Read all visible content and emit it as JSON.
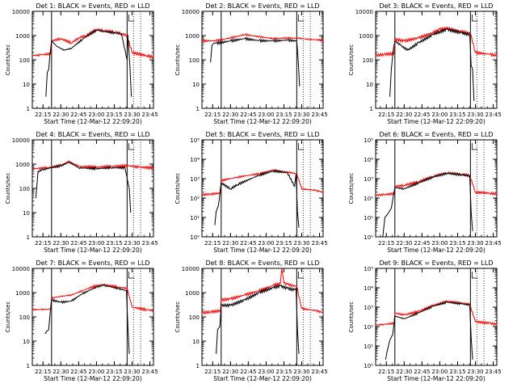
{
  "colors": {
    "events": "#000000",
    "lld": "#ff0000",
    "frame": "#000000"
  },
  "chart_data": [
    {
      "type": "line",
      "title": "Det 1: BLACK = Events, RED = LLD",
      "xlabel": "Start Time (12-Mar-12 22:09:20)",
      "ylabel": "Counts/sec",
      "xlim": [
        22.1,
        23.8
      ],
      "ylim": [
        1,
        10000
      ],
      "x_ticks": [
        "22:15",
        "22:30",
        "22:45",
        "23:00",
        "23:15",
        "23:30",
        "23:45"
      ],
      "y_ticks": [
        "1",
        "10",
        "100",
        "1000",
        "10000"
      ],
      "series": [
        {
          "name": "LLD",
          "color": "#ff0000",
          "x": [
            22.1,
            22.22,
            22.36,
            22.37,
            22.5,
            22.65,
            22.75,
            22.85,
            23.0,
            23.1,
            23.25,
            23.35,
            23.43,
            23.5,
            23.7,
            23.8
          ],
          "y": [
            150,
            160,
            180,
            600,
            750,
            500,
            800,
            1000,
            1800,
            1600,
            1400,
            1200,
            1000,
            200,
            150,
            130
          ]
        },
        {
          "name": "Events",
          "color": "#000000",
          "x": [
            22.29,
            22.31,
            22.33,
            22.35,
            22.37,
            22.45,
            22.55,
            22.65,
            22.8,
            23.0,
            23.1,
            23.25,
            23.35,
            23.43,
            23.44,
            23.47,
            23.49
          ],
          "y": [
            3,
            30,
            40,
            200,
            600,
            350,
            250,
            300,
            700,
            1700,
            1500,
            1300,
            1200,
            100,
            1100,
            50,
            3
          ]
        }
      ]
    },
    {
      "type": "line",
      "title": "Det 2: BLACK = Events, RED = LLD",
      "xlabel": "Start Time (12-Mar-12 22:09:20)",
      "ylabel": "Counts/sec",
      "xlim": [
        22.1,
        23.8
      ],
      "ylim": [
        1,
        10000
      ],
      "x_ticks": [
        "22:15",
        "22:30",
        "22:45",
        "23:00",
        "23:15",
        "23:30",
        "23:45"
      ],
      "y_ticks": [
        "1",
        "10",
        "100",
        "1000",
        "10000"
      ],
      "series": [
        {
          "name": "LLD",
          "color": "#ff0000",
          "x": [
            22.1,
            22.3,
            22.5,
            22.7,
            22.9,
            23.1,
            23.3,
            23.45,
            23.6,
            23.8
          ],
          "y": [
            600,
            620,
            800,
            1100,
            900,
            750,
            800,
            780,
            700,
            650
          ]
        },
        {
          "name": "Events",
          "color": "#000000",
          "x": [
            22.22,
            22.24,
            22.27,
            22.3,
            22.5,
            22.7,
            22.9,
            23.1,
            23.3,
            23.43,
            23.45,
            23.47
          ],
          "y": [
            80,
            400,
            500,
            480,
            600,
            750,
            620,
            600,
            650,
            600,
            100,
            8
          ]
        }
      ]
    },
    {
      "type": "line",
      "title": "Det 3: BLACK = Events, RED = LLD",
      "xlabel": "Start Time (12-Mar-12 22:09:20)",
      "ylabel": "Counts/sec",
      "xlim": [
        22.1,
        23.8
      ],
      "ylim": [
        1,
        10000
      ],
      "x_ticks": [
        "22:15",
        "22:30",
        "22:45",
        "23:00",
        "23:15",
        "23:30",
        "23:45"
      ],
      "y_ticks": [
        "1",
        "10",
        "100",
        "1000",
        "10000"
      ],
      "series": [
        {
          "name": "LLD",
          "color": "#ff0000",
          "x": [
            22.1,
            22.22,
            22.36,
            22.37,
            22.5,
            22.7,
            22.9,
            23.0,
            23.1,
            23.3,
            23.43,
            23.5,
            23.7,
            23.8
          ],
          "y": [
            150,
            170,
            180,
            700,
            600,
            800,
            1300,
            1800,
            2000,
            1500,
            1200,
            200,
            170,
            150
          ]
        },
        {
          "name": "Events",
          "color": "#000000",
          "x": [
            22.3,
            22.32,
            22.35,
            22.37,
            22.45,
            22.55,
            22.7,
            22.9,
            23.1,
            23.3,
            23.42,
            23.44,
            23.46,
            23.48
          ],
          "y": [
            3,
            40,
            300,
            600,
            400,
            250,
            500,
            1100,
            1800,
            1300,
            1100,
            60,
            40,
            2
          ]
        }
      ]
    },
    {
      "type": "line",
      "title": "Det 4: BLACK = Events, RED = LLD",
      "xlabel": "Start Time (12-Mar-12 22:09:20)",
      "ylabel": "Counts/sec",
      "xlim": [
        22.1,
        23.8
      ],
      "ylim": [
        1,
        10000
      ],
      "x_ticks": [
        "22:15",
        "22:30",
        "22:45",
        "23:00",
        "23:15",
        "23:30",
        "23:45"
      ],
      "y_ticks": [
        "1",
        "10",
        "100",
        "1000",
        "10000"
      ],
      "series": [
        {
          "name": "LLD",
          "color": "#ff0000",
          "x": [
            22.1,
            22.3,
            22.5,
            22.62,
            22.75,
            23.0,
            23.2,
            23.45,
            23.6,
            23.8
          ],
          "y": [
            650,
            700,
            900,
            1300,
            800,
            750,
            800,
            850,
            750,
            700
          ]
        },
        {
          "name": "Events",
          "color": "#000000",
          "x": [
            22.15,
            22.18,
            22.25,
            22.5,
            22.62,
            22.75,
            23.0,
            23.2,
            23.4,
            23.46,
            23.48
          ],
          "y": [
            40,
            500,
            600,
            850,
            1200,
            700,
            650,
            700,
            700,
            100,
            10
          ]
        }
      ]
    },
    {
      "type": "line",
      "title": "Det 5: BLACK = Events, RED = LLD",
      "xlabel": "Start Time (12-Mar-12 22:09:20)",
      "ylabel": "Counts/sec",
      "xlim": [
        22.1,
        23.8
      ],
      "ylim": [
        1,
        100000
      ],
      "x_ticks": [
        "22:15",
        "22:30",
        "22:45",
        "23:00",
        "23:15",
        "23:30",
        "23:45"
      ],
      "y_ticks": [
        "10⁰",
        "10¹",
        "10²",
        "10³",
        "10⁴",
        "10⁵"
      ],
      "series": [
        {
          "name": "LLD",
          "color": "#ff0000",
          "x": [
            22.1,
            22.22,
            22.36,
            22.37,
            22.6,
            22.9,
            23.1,
            23.3,
            23.43,
            23.5,
            23.7,
            23.8
          ],
          "y": [
            150,
            160,
            180,
            800,
            1200,
            1800,
            2800,
            2200,
            1800,
            300,
            250,
            200
          ]
        },
        {
          "name": "Events",
          "color": "#000000",
          "x": [
            22.28,
            22.3,
            22.33,
            22.37,
            22.5,
            22.6,
            22.9,
            23.1,
            23.3,
            23.4,
            23.42,
            23.44,
            23.46
          ],
          "y": [
            4,
            20,
            40,
            600,
            300,
            500,
            1500,
            2500,
            2000,
            400,
            1800,
            20,
            3
          ]
        }
      ]
    },
    {
      "type": "line",
      "title": "Det 6: BLACK = Events, RED = LLD",
      "xlabel": "Start Time (12-Mar-12 22:09:20)",
      "ylabel": "Counts/sec",
      "xlim": [
        22.1,
        23.8
      ],
      "ylim": [
        1,
        100000
      ],
      "x_ticks": [
        "22:15",
        "22:30",
        "22:45",
        "23:00",
        "23:15",
        "23:30",
        "23:45"
      ],
      "y_ticks": [
        "10⁰",
        "10¹",
        "10²",
        "10³",
        "10⁴",
        "10⁵"
      ],
      "series": [
        {
          "name": "LLD",
          "color": "#ff0000",
          "x": [
            22.1,
            22.22,
            22.36,
            22.37,
            22.5,
            22.7,
            22.9,
            23.1,
            23.3,
            23.42,
            23.5,
            23.7,
            23.8
          ],
          "y": [
            140,
            150,
            170,
            400,
            450,
            700,
            1300,
            2000,
            1700,
            1500,
            200,
            180,
            160
          ]
        },
        {
          "name": "Events",
          "color": "#000000",
          "x": [
            22.2,
            22.23,
            22.27,
            22.32,
            22.37,
            22.5,
            22.7,
            22.9,
            23.1,
            23.3,
            23.42,
            23.44,
            23.46
          ],
          "y": [
            1,
            10,
            15,
            30,
            350,
            300,
            600,
            1200,
            1900,
            1600,
            1400,
            20,
            2
          ]
        }
      ]
    },
    {
      "type": "line",
      "title": "Det 7: BLACK = Events, RED = LLD",
      "xlabel": "Start Time (12-Mar-12 22:09:20)",
      "ylabel": "Counts/sec",
      "xlim": [
        22.1,
        23.8
      ],
      "ylim": [
        1,
        10000
      ],
      "x_ticks": [
        "22:15",
        "22:30",
        "22:45",
        "23:00",
        "23:15",
        "23:30",
        "23:45"
      ],
      "y_ticks": [
        "1",
        "10",
        "100",
        "1000",
        "10000"
      ],
      "series": [
        {
          "name": "LLD",
          "color": "#ff0000",
          "x": [
            22.1,
            22.22,
            22.36,
            22.37,
            22.5,
            22.65,
            22.8,
            23.0,
            23.1,
            23.3,
            23.43,
            23.5,
            23.7,
            23.8
          ],
          "y": [
            200,
            200,
            210,
            600,
            700,
            800,
            1200,
            2000,
            2200,
            1700,
            1500,
            250,
            200,
            180
          ]
        },
        {
          "name": "Events",
          "color": "#000000",
          "x": [
            22.28,
            22.3,
            22.33,
            22.35,
            22.37,
            22.5,
            22.65,
            22.8,
            23.0,
            23.1,
            23.3,
            23.42,
            23.44,
            23.46
          ],
          "y": [
            20,
            25,
            30,
            150,
            500,
            400,
            450,
            900,
            1700,
            2000,
            1500,
            1200,
            50,
            3
          ]
        }
      ]
    },
    {
      "type": "line",
      "title": "Det 8: BLACK = Events, RED = LLD",
      "xlabel": "Start Time (12-Mar-12 22:09:20)",
      "ylabel": "Counts/sec",
      "xlim": [
        22.1,
        23.8
      ],
      "ylim": [
        1,
        10000
      ],
      "x_ticks": [
        "22:15",
        "22:30",
        "22:45",
        "23:00",
        "23:15",
        "23:30",
        "23:45"
      ],
      "y_ticks": [
        "1",
        "10",
        "100",
        "1000",
        "10000"
      ],
      "series": [
        {
          "name": "LLD",
          "color": "#ff0000",
          "x": [
            22.1,
            22.22,
            22.36,
            22.37,
            22.5,
            22.7,
            22.9,
            23.1,
            23.2,
            23.22,
            23.25,
            23.3,
            23.43,
            23.5,
            23.7,
            23.8
          ],
          "y": [
            150,
            160,
            180,
            500,
            550,
            800,
            1200,
            2000,
            2400,
            10000,
            2500,
            2200,
            1800,
            220,
            180,
            150
          ]
        },
        {
          "name": "Events",
          "color": "#000000",
          "x": [
            22.3,
            22.32,
            22.35,
            22.37,
            22.5,
            22.7,
            22.9,
            23.1,
            23.2,
            23.3,
            23.4,
            23.42,
            23.44,
            23.46
          ],
          "y": [
            3,
            30,
            40,
            300,
            300,
            500,
            1000,
            1600,
            1900,
            1500,
            1300,
            1500,
            30,
            3
          ]
        }
      ]
    },
    {
      "type": "line",
      "title": "Det 9: BLACK = Events, RED = LLD",
      "xlabel": "Start Time (12-Mar-12 22:09:20)",
      "ylabel": "Counts/sec",
      "xlim": [
        22.1,
        23.8
      ],
      "ylim": [
        1,
        100000
      ],
      "x_ticks": [
        "22:15",
        "22:30",
        "22:45",
        "23:00",
        "23:15",
        "23:30",
        "23:45"
      ],
      "y_ticks": [
        "10⁰",
        "10¹",
        "10²",
        "10³",
        "10⁴",
        "10⁵"
      ],
      "series": [
        {
          "name": "LLD",
          "color": "#ff0000",
          "x": [
            22.1,
            22.22,
            22.36,
            22.37,
            22.5,
            22.7,
            22.9,
            23.1,
            23.3,
            23.42,
            23.5,
            23.7,
            23.8
          ],
          "y": [
            120,
            130,
            150,
            500,
            400,
            600,
            1200,
            2000,
            1600,
            1400,
            180,
            150,
            130
          ]
        },
        {
          "name": "Events",
          "color": "#000000",
          "x": [
            22.24,
            22.26,
            22.3,
            22.34,
            22.37,
            22.5,
            22.7,
            22.9,
            23.1,
            23.3,
            23.42,
            23.44,
            23.46
          ],
          "y": [
            2,
            5,
            20,
            40,
            350,
            250,
            500,
            1100,
            1800,
            1500,
            1300,
            30,
            2
          ]
        }
      ]
    }
  ]
}
